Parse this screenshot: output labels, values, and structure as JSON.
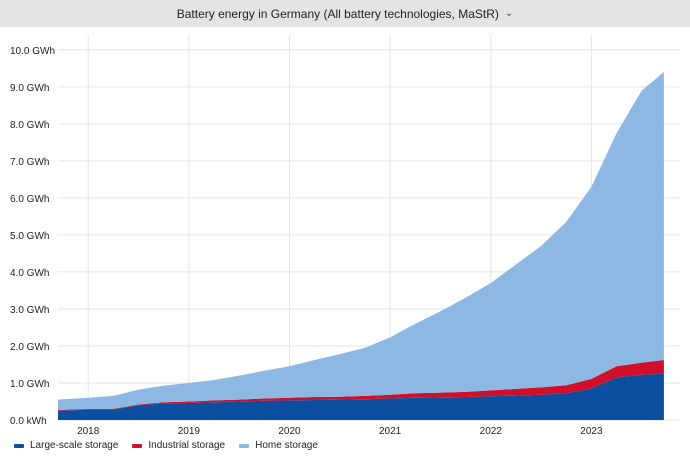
{
  "header": {
    "title": "Battery energy in Germany (All battery technologies, MaStR)"
  },
  "chart_data": {
    "type": "area",
    "stacked": true,
    "title": "Battery energy in Germany (All battery technologies, MaStR)",
    "unit": "GWh",
    "x": [
      2017.7,
      2018.0,
      2018.25,
      2018.5,
      2018.75,
      2019.0,
      2019.25,
      2019.5,
      2019.75,
      2020.0,
      2020.25,
      2020.5,
      2020.75,
      2021.0,
      2021.25,
      2021.5,
      2021.75,
      2022.0,
      2022.25,
      2022.5,
      2022.75,
      2023.0,
      2023.25,
      2023.5,
      2023.72
    ],
    "x_ticks": [
      "2018",
      "2019",
      "2020",
      "2021",
      "2022",
      "2023"
    ],
    "y_ticks": [
      "0.0 kWh",
      "1.0 GWh",
      "2.0 GWh",
      "3.0 GWh",
      "4.0 GWh",
      "5.0 GWh",
      "6.0 GWh",
      "7.0 GWh",
      "8.0 GWh",
      "9.0 GWh",
      "10.0 GWh"
    ],
    "ylim": [
      0,
      10.4
    ],
    "series": [
      {
        "name": "Large-scale storage",
        "color": "#0c4fa0",
        "values": [
          0.25,
          0.28,
          0.28,
          0.4,
          0.45,
          0.46,
          0.48,
          0.5,
          0.52,
          0.53,
          0.54,
          0.55,
          0.56,
          0.58,
          0.6,
          0.61,
          0.62,
          0.64,
          0.66,
          0.68,
          0.72,
          0.85,
          1.15,
          1.22,
          1.25
        ]
      },
      {
        "name": "Industrial storage",
        "color": "#d0102a",
        "values": [
          0.02,
          0.02,
          0.02,
          0.02,
          0.03,
          0.04,
          0.05,
          0.05,
          0.06,
          0.07,
          0.08,
          0.08,
          0.09,
          0.1,
          0.12,
          0.13,
          0.14,
          0.16,
          0.18,
          0.2,
          0.22,
          0.26,
          0.3,
          0.33,
          0.37
        ]
      },
      {
        "name": "Home storage",
        "color": "#8cb8e3",
        "values": [
          0.28,
          0.3,
          0.35,
          0.4,
          0.45,
          0.5,
          0.55,
          0.65,
          0.75,
          0.85,
          1.0,
          1.15,
          1.3,
          1.55,
          1.88,
          2.2,
          2.54,
          2.9,
          3.36,
          3.82,
          4.41,
          5.19,
          6.3,
          7.35,
          7.78
        ]
      }
    ],
    "legend_position": "bottom-left",
    "grid": true
  }
}
